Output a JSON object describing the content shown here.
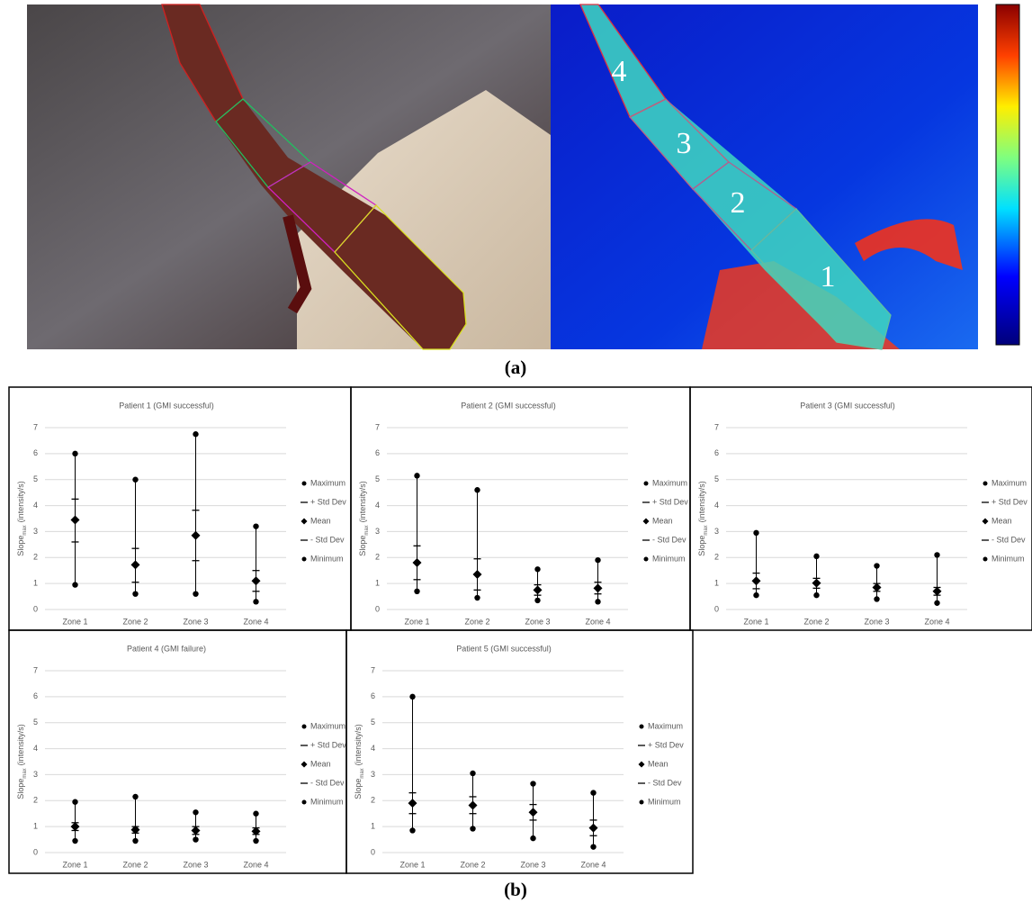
{
  "figure": {
    "image_labels": [
      "1",
      "2",
      "3",
      "4"
    ],
    "caption_a": "(a)",
    "caption_b": "(b)"
  },
  "chart_data": [
    {
      "type": "range",
      "title": "Patient 1 (GMI successful)",
      "ylabel": {
        "main": "Slope",
        "sub": "max",
        "unit": "(intensity/s)"
      },
      "categories": [
        "Zone 1",
        "Zone 2",
        "Zone 3",
        "Zone 4"
      ],
      "ylim": [
        0,
        7
      ],
      "yticks": [
        0,
        1,
        2,
        3,
        4,
        5,
        6,
        7
      ],
      "grid": true,
      "series": [
        {
          "name": "Maximum",
          "marker": "circle",
          "color": "#000000",
          "values": [
            6.0,
            5.0,
            6.75,
            3.2
          ]
        },
        {
          "name": "+ Std Dev",
          "marker": "dash",
          "color": "#000000",
          "values": [
            4.25,
            2.35,
            3.82,
            1.5
          ]
        },
        {
          "name": "Mean",
          "marker": "diamond",
          "color": "#000000",
          "values": [
            3.45,
            1.72,
            2.85,
            1.1
          ]
        },
        {
          "name": "- Std Dev",
          "marker": "dash",
          "color": "#000000",
          "values": [
            2.6,
            1.05,
            1.88,
            0.7
          ]
        },
        {
          "name": "Minimum",
          "marker": "circle",
          "color": "#000000",
          "values": [
            0.95,
            0.6,
            0.6,
            0.3
          ]
        }
      ]
    },
    {
      "type": "range",
      "title": "Patient 2 (GMI successful)",
      "ylabel": {
        "main": "Slope",
        "sub": "max",
        "unit": "(intensity/s)"
      },
      "categories": [
        "Zone 1",
        "Zone 2",
        "Zone 3",
        "Zone 4"
      ],
      "ylim": [
        0,
        7
      ],
      "yticks": [
        0,
        1,
        2,
        3,
        4,
        5,
        6,
        7
      ],
      "grid": true,
      "series": [
        {
          "name": "Maximum",
          "marker": "circle",
          "color": "#000000",
          "values": [
            5.15,
            4.6,
            1.55,
            1.9
          ]
        },
        {
          "name": "+ Std Dev",
          "marker": "dash",
          "color": "#000000",
          "values": [
            2.45,
            1.95,
            0.95,
            1.05
          ]
        },
        {
          "name": "Mean",
          "marker": "diamond",
          "color": "#000000",
          "values": [
            1.8,
            1.35,
            0.75,
            0.82
          ]
        },
        {
          "name": "- Std Dev",
          "marker": "dash",
          "color": "#000000",
          "values": [
            1.15,
            0.75,
            0.55,
            0.6
          ]
        },
        {
          "name": "Minimum",
          "marker": "circle",
          "color": "#000000",
          "values": [
            0.7,
            0.45,
            0.35,
            0.3
          ]
        }
      ]
    },
    {
      "type": "range",
      "title": "Patient 3 (GMI successful)",
      "ylabel": {
        "main": "Slope",
        "sub": "max",
        "unit": "(intensity/s)"
      },
      "categories": [
        "Zone 1",
        "Zone 2",
        "Zone 3",
        "Zone 4"
      ],
      "ylim": [
        0,
        7
      ],
      "yticks": [
        0,
        1,
        2,
        3,
        4,
        5,
        6,
        7
      ],
      "grid": true,
      "series": [
        {
          "name": "Maximum",
          "marker": "circle",
          "color": "#000000",
          "values": [
            2.95,
            2.05,
            1.68,
            2.1
          ]
        },
        {
          "name": "+ Std Dev",
          "marker": "dash",
          "color": "#000000",
          "values": [
            1.4,
            1.2,
            1.0,
            0.85
          ]
        },
        {
          "name": "Mean",
          "marker": "diamond",
          "color": "#000000",
          "values": [
            1.1,
            1.02,
            0.85,
            0.7
          ]
        },
        {
          "name": "- Std Dev",
          "marker": "dash",
          "color": "#000000",
          "values": [
            0.8,
            0.82,
            0.7,
            0.55
          ]
        },
        {
          "name": "Minimum",
          "marker": "circle",
          "color": "#000000",
          "values": [
            0.55,
            0.55,
            0.4,
            0.25
          ]
        }
      ]
    },
    {
      "type": "range",
      "title": "Patient 4 (GMI failure)",
      "ylabel": {
        "main": "Slope",
        "sub": "max",
        "unit": "(intensity/s)"
      },
      "categories": [
        "Zone 1",
        "Zone 2",
        "Zone 3",
        "Zone 4"
      ],
      "ylim": [
        0,
        7
      ],
      "yticks": [
        0,
        1,
        2,
        3,
        4,
        5,
        6,
        7
      ],
      "grid": true,
      "series": [
        {
          "name": "Maximum",
          "marker": "circle",
          "color": "#000000",
          "values": [
            1.95,
            2.15,
            1.55,
            1.5
          ]
        },
        {
          "name": "+ Std Dev",
          "marker": "dash",
          "color": "#000000",
          "values": [
            1.15,
            1.0,
            1.0,
            0.95
          ]
        },
        {
          "name": "Mean",
          "marker": "diamond",
          "color": "#000000",
          "values": [
            1.0,
            0.88,
            0.85,
            0.82
          ]
        },
        {
          "name": "- Std Dev",
          "marker": "dash",
          "color": "#000000",
          "values": [
            0.85,
            0.75,
            0.7,
            0.7
          ]
        },
        {
          "name": "Minimum",
          "marker": "circle",
          "color": "#000000",
          "values": [
            0.45,
            0.45,
            0.5,
            0.45
          ]
        }
      ]
    },
    {
      "type": "range",
      "title": "Patient 5 (GMI successful)",
      "ylabel": {
        "main": "Slope",
        "sub": "max",
        "unit": "(intensity/s)"
      },
      "categories": [
        "Zone 1",
        "Zone 2",
        "Zone 3",
        "Zone 4"
      ],
      "ylim": [
        0,
        7
      ],
      "yticks": [
        0,
        1,
        2,
        3,
        4,
        5,
        6,
        7
      ],
      "grid": true,
      "series": [
        {
          "name": "Maximum",
          "marker": "circle",
          "color": "#000000",
          "values": [
            6.0,
            3.05,
            2.65,
            2.3
          ]
        },
        {
          "name": "+ Std Dev",
          "marker": "dash",
          "color": "#000000",
          "values": [
            2.3,
            2.15,
            1.85,
            1.25
          ]
        },
        {
          "name": "Mean",
          "marker": "diamond",
          "color": "#000000",
          "values": [
            1.9,
            1.82,
            1.55,
            0.95
          ]
        },
        {
          "name": "- Std Dev",
          "marker": "dash",
          "color": "#000000",
          "values": [
            1.5,
            1.5,
            1.25,
            0.65
          ]
        },
        {
          "name": "Minimum",
          "marker": "circle",
          "color": "#000000",
          "values": [
            0.85,
            0.92,
            0.55,
            0.22
          ]
        }
      ]
    }
  ]
}
